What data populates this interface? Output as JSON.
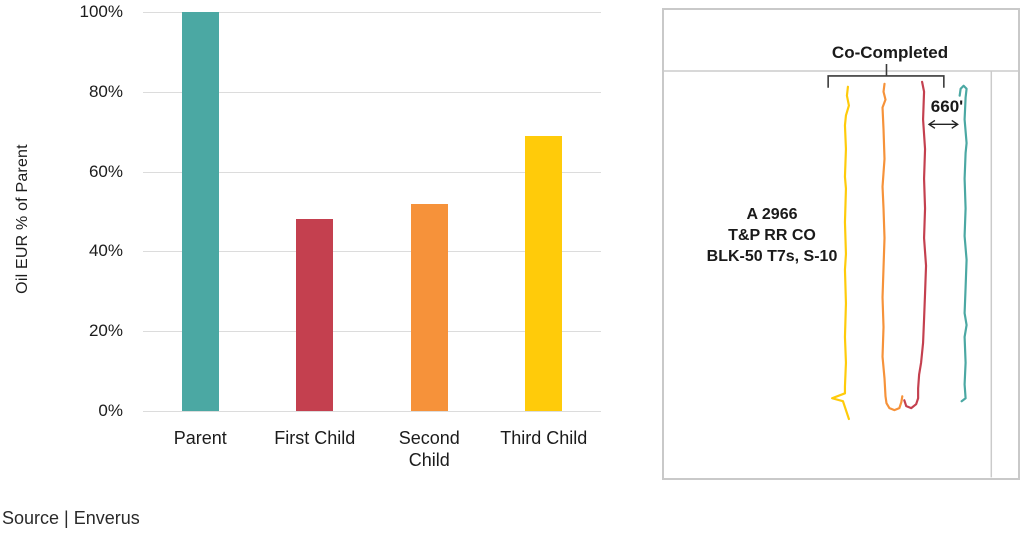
{
  "chart_data": {
    "type": "bar",
    "categories": [
      "Parent",
      "First Child",
      "Second Child",
      "Third Child"
    ],
    "values": [
      100,
      48,
      52,
      69
    ],
    "title": "",
    "xlabel": "",
    "ylabel": "Oil EUR % of Parent",
    "ylim": [
      0,
      100
    ],
    "ytick_step": 20,
    "ytick_suffix": "%",
    "grid": "horizontal",
    "legend": "none",
    "bar_colors": [
      "#4BA8A3",
      "#C4404F",
      "#F6923A",
      "#FFCB0A"
    ],
    "gridline_color": "#dcdcdc"
  },
  "source_note": "Source | Enverus",
  "map_panel": {
    "co_completed_label": "Co-Completed",
    "distance_label": "660'",
    "area_label_lines": [
      "A 2966",
      "T&P RR CO",
      "BLK-50 T7s, S-10"
    ],
    "border_color": "#c9c9c9",
    "wells": [
      {
        "name": "third-child-wellbore",
        "color": "#FFCB0A"
      },
      {
        "name": "second-child-wellbore",
        "color": "#F6923A"
      },
      {
        "name": "first-child-wellbore",
        "color": "#C4404F"
      },
      {
        "name": "parent-wellbore",
        "color": "#4BA8A3"
      }
    ]
  }
}
